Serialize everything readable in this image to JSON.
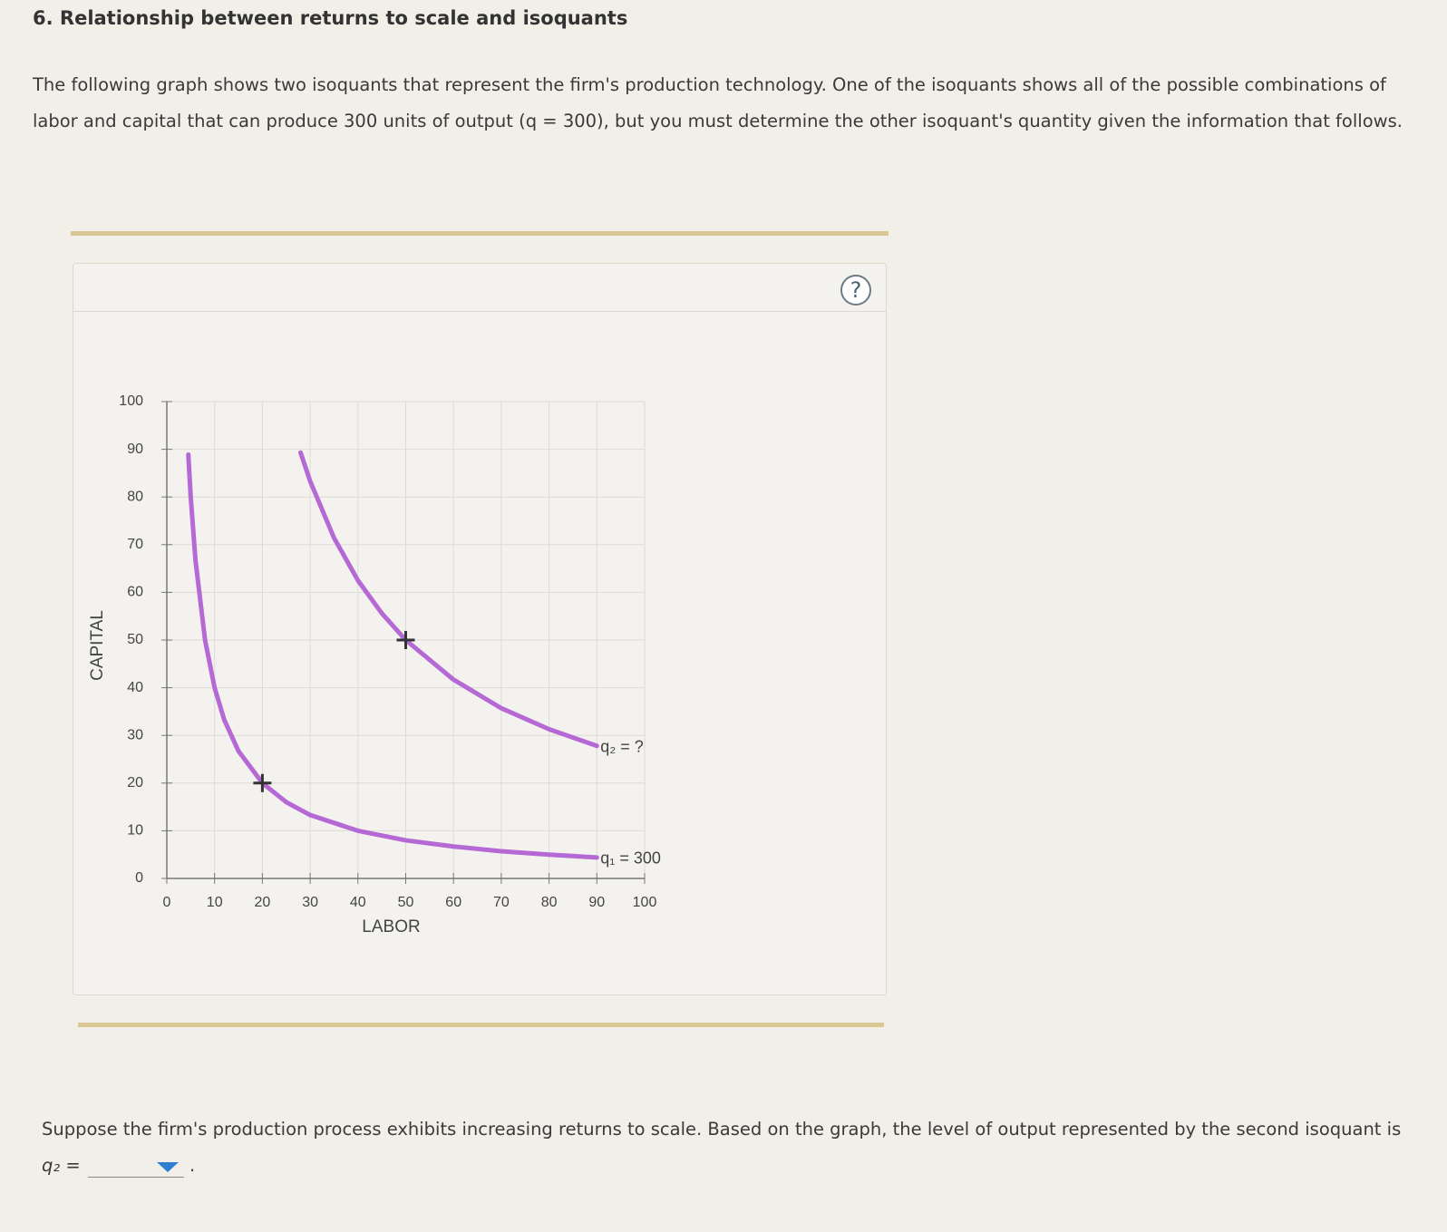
{
  "header": {
    "title": "6. Relationship between returns to scale and isoquants"
  },
  "intro": "The following graph shows two isoquants that represent the firm's production technology. One of the isoquants shows all of the possible combinations of labor and capital that can produce 300 units of output (q = 300), but you must determine the other isoquant's quantity given the information that follows.",
  "help_button": "?",
  "chart_data": {
    "type": "line",
    "x_label": "LABOR",
    "y_label": "CAPITAL",
    "xlim": [
      0,
      100
    ],
    "ylim": [
      0,
      100
    ],
    "xticks": [
      0,
      10,
      20,
      30,
      40,
      50,
      60,
      70,
      80,
      90,
      100
    ],
    "yticks": [
      0,
      10,
      20,
      30,
      40,
      50,
      60,
      70,
      80,
      90,
      100
    ],
    "grid": true,
    "series": [
      {
        "name": "q₁ = 300",
        "color": "#b469d4",
        "x": [
          4.5,
          5,
          6,
          8,
          10,
          12,
          15,
          20,
          25,
          30,
          40,
          50,
          60,
          70,
          80,
          90
        ],
        "values": [
          88.9,
          80,
          66.7,
          50,
          40,
          33.3,
          26.7,
          20,
          16,
          13.3,
          10,
          8,
          6.7,
          5.7,
          5,
          4.4
        ]
      },
      {
        "name": "q₂ = ?",
        "color": "#b469d4",
        "x": [
          28,
          30,
          35,
          40,
          45,
          50,
          60,
          70,
          80,
          90
        ],
        "values": [
          89.3,
          83.3,
          71.4,
          62.5,
          55.6,
          50,
          41.7,
          35.7,
          31.3,
          27.8
        ]
      }
    ],
    "markers": {
      "x": [
        20,
        50
      ],
      "y": [
        20,
        50
      ]
    }
  },
  "question": {
    "text": "Suppose the firm's production process exhibits increasing returns to scale. Based on the graph, the level of output represented by the second isoquant is",
    "variable": "q₂ =",
    "end": "."
  }
}
